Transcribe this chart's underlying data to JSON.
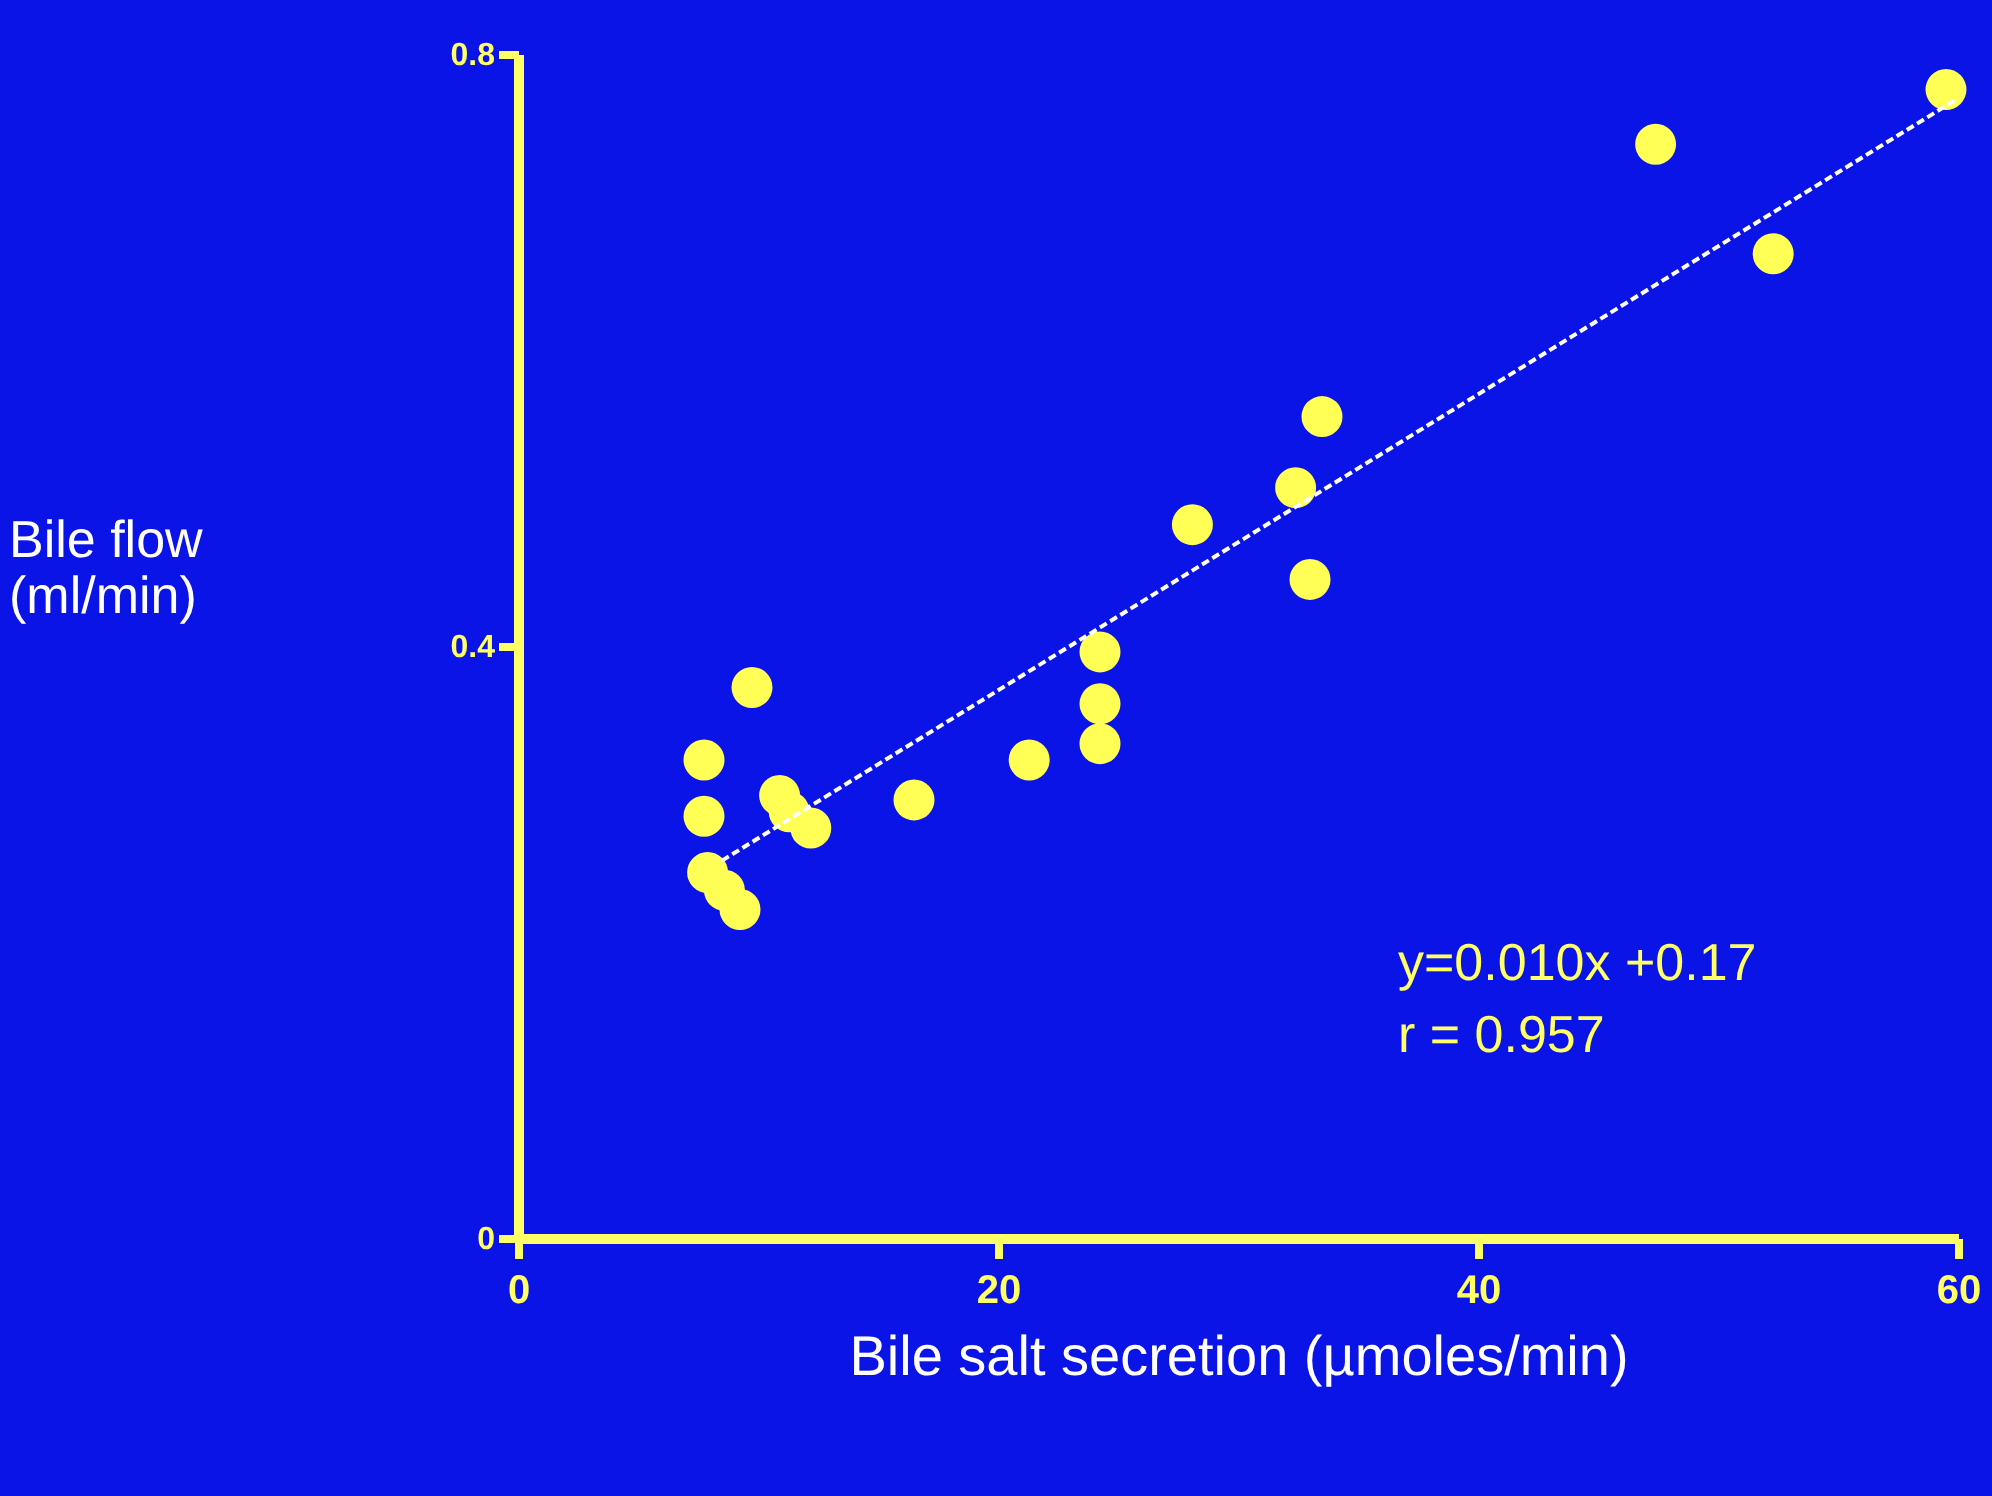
{
  "chart_data": {
    "type": "scatter",
    "xlabel": "Bile salt secretion (µmoles/min)",
    "ylabel": "Bile flow\n(ml/min)",
    "xlim": [
      0,
      60
    ],
    "xticks": [
      0,
      20,
      40,
      60
    ],
    "ylim": [
      0,
      0.8
    ],
    "yticks": [
      0,
      0.4,
      0.8
    ],
    "grid": false,
    "series": [
      {
        "color": "#ffff55",
        "marker": "circle",
        "x": [
          7.75,
          7.75,
          7.9,
          8.6,
          9.25,
          9.75,
          10.9,
          11.3,
          12.2,
          16.5,
          21.3,
          24.25,
          24.25,
          24.25,
          28.1,
          32.4,
          33,
          33.5,
          47.4,
          52.3,
          59.5
        ],
        "values": [
          0.323,
          0.285,
          0.247,
          0.235,
          0.222,
          0.372,
          0.299,
          0.288,
          0.277,
          0.296,
          0.323,
          0.396,
          0.361,
          0.334,
          0.482,
          0.507,
          0.445,
          0.555,
          0.739,
          0.665,
          0.776
        ]
      },
      {
        "type": "line",
        "color": "#ffffff",
        "line_style": "dashed",
        "x": [
          8.5,
          60
        ],
        "values": [
          0.255,
          0.77
        ]
      }
    ],
    "annotations": [
      "y=0.010x +0.17",
      "r = 0.957"
    ]
  }
}
